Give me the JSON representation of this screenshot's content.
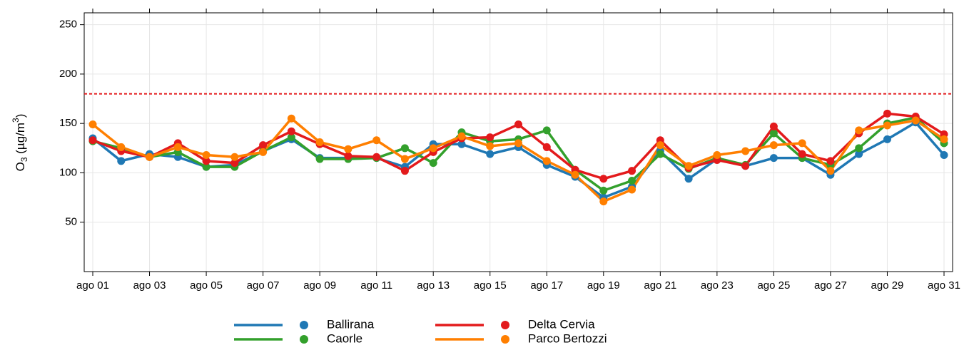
{
  "chart_data": {
    "type": "line",
    "y_label": {
      "parts": [
        "O",
        "3",
        " (µg/m",
        "3",
        ")"
      ]
    },
    "categories": [
      "ago 01",
      null,
      "ago 03",
      null,
      "ago 05",
      null,
      "ago 07",
      null,
      "ago 09",
      null,
      "ago 11",
      null,
      "ago 13",
      null,
      "ago 15",
      null,
      "ago 17",
      null,
      "ago 19",
      null,
      "ago 21",
      null,
      "ago 23",
      null,
      "ago 25",
      null,
      "ago 27",
      null,
      "ago 29",
      null,
      "ago 31"
    ],
    "series": [
      {
        "name": "Ballirana",
        "color": "#1f78b4",
        "values": [
          135,
          112,
          119,
          116,
          106,
          108,
          122,
          134,
          115,
          115,
          115,
          106,
          129,
          129,
          119,
          126,
          108,
          96,
          75,
          86,
          122,
          94,
          114,
          107,
          115,
          115,
          98,
          119,
          134,
          151,
          118
        ]
      },
      {
        "name": "Caorle",
        "color": "#33a02c",
        "values": [
          132,
          125,
          116,
          121,
          106,
          106,
          122,
          136,
          114,
          114,
          115,
          125,
          110,
          141,
          132,
          134,
          143,
          103,
          82,
          92,
          119,
          104,
          115,
          108,
          140,
          115,
          108,
          125,
          150,
          156,
          130
        ]
      },
      {
        "name": "Delta Cervia",
        "color": "#e31a1c",
        "values": [
          133,
          122,
          116,
          130,
          112,
          110,
          128,
          142,
          129,
          117,
          116,
          102,
          121,
          135,
          136,
          149,
          126,
          103,
          94,
          102,
          133,
          105,
          113,
          107,
          147,
          119,
          112,
          140,
          160,
          157,
          139
        ]
      },
      {
        "name": "Parco Bertozzi",
        "color": "#ff7f00",
        "values": [
          149,
          126,
          116,
          126,
          118,
          116,
          121,
          155,
          131,
          124,
          133,
          114,
          125,
          137,
          127,
          130,
          112,
          98,
          71,
          83,
          128,
          107,
          118,
          122,
          128,
          130,
          102,
          143,
          148,
          153,
          134
        ]
      }
    ],
    "threshold": {
      "value": 180,
      "color": "#e31a1c"
    },
    "ylim": [
      0,
      262
    ],
    "yticks": [
      50,
      100,
      150,
      200,
      250
    ],
    "grid": true
  }
}
